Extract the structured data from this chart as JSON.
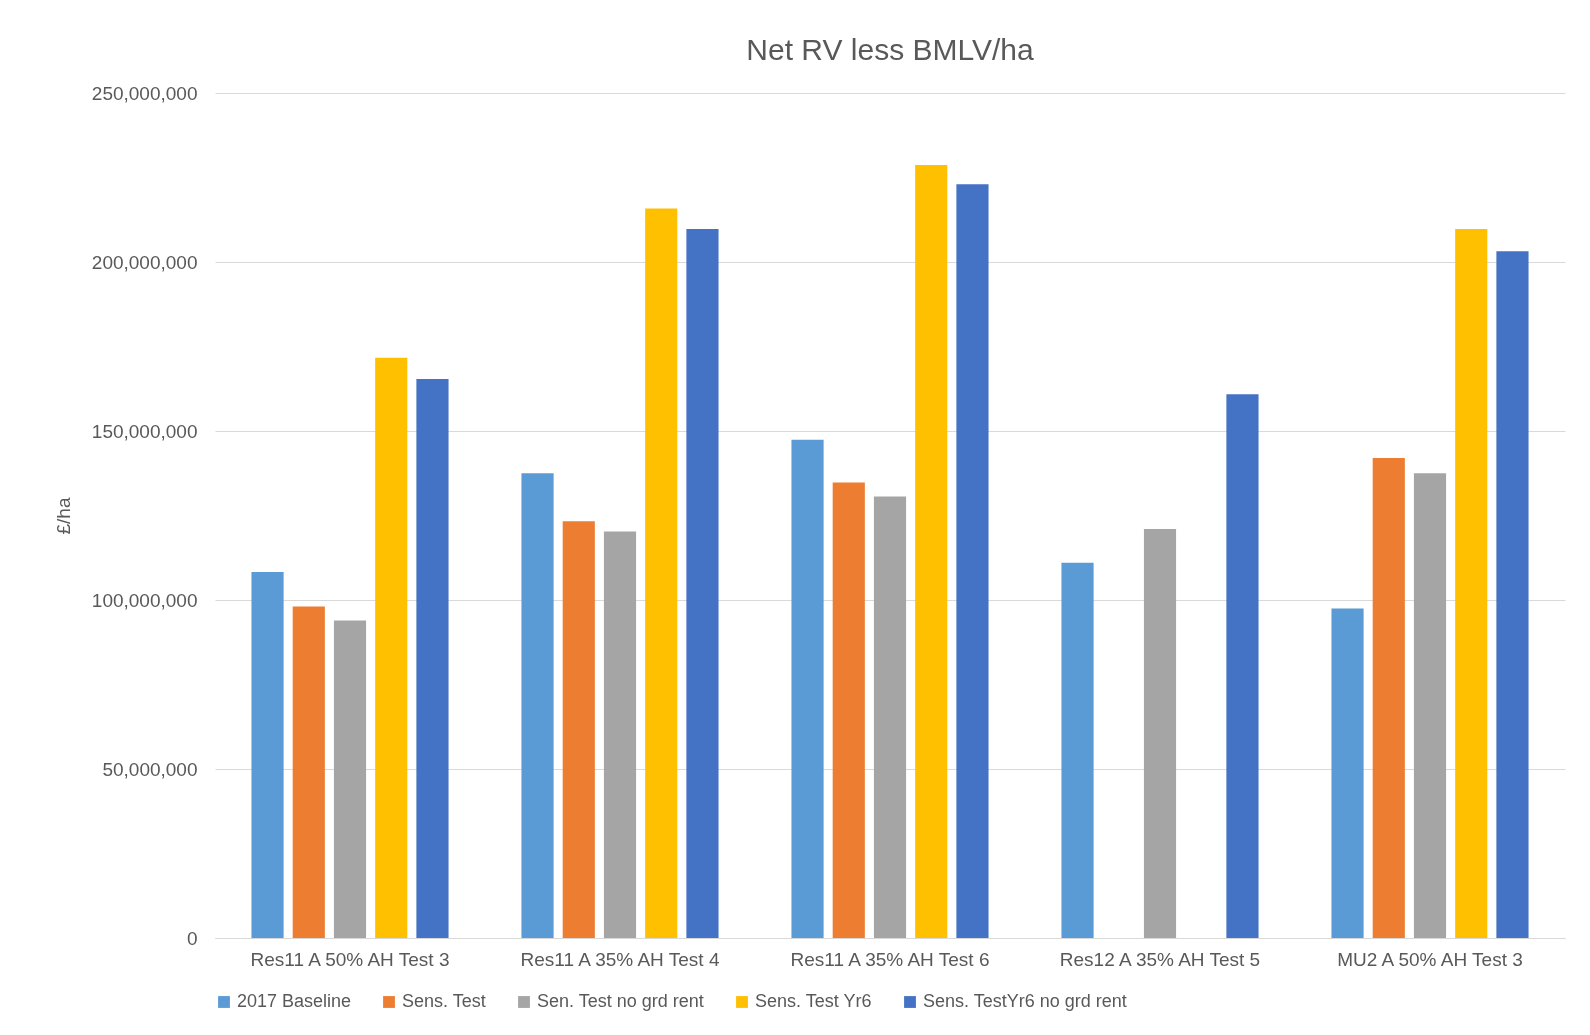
{
  "chart_data": {
    "type": "bar",
    "title": "Net RV less BMLV/ha",
    "ylabel": "£/ha",
    "categories": [
      "Res11 A 50% AH Test 3",
      "Res11 A 35% AH Test 4",
      "Res11 A 35% AH Test 6",
      "Res12 A 35% AH Test 5",
      "MU2 A 50% AH Test 3"
    ],
    "series": [
      {
        "name": "2017 Baseline",
        "color": "#5b9bd5",
        "values": [
          108300000,
          137500000,
          147400000,
          111000000,
          97500000
        ]
      },
      {
        "name": "Sens. Test",
        "color": "#ed7d31",
        "values": [
          98100000,
          123300000,
          134800000,
          null,
          142000000
        ]
      },
      {
        "name": "Sen. Test no grd rent",
        "color": "#a5a5a5",
        "values": [
          93900000,
          120300000,
          130600000,
          121000000,
          137500000
        ]
      },
      {
        "name": "Sens. Test Yr6",
        "color": "#ffc000",
        "values": [
          171700000,
          215800000,
          228700000,
          null,
          209800000
        ]
      },
      {
        "name": "Sens. TestYr6 no grd rent",
        "color": "#4472c4",
        "values": [
          165400000,
          209800000,
          223000000,
          160900000,
          203200000
        ]
      }
    ],
    "ylim": [
      0,
      250000000
    ],
    "yticks": [
      0,
      {
        "value": 50000000,
        "label": "50,000,000"
      },
      {
        "value": 100000000,
        "label": "100,000,000"
      },
      {
        "value": 150000000,
        "label": "150,000,000"
      },
      {
        "value": 200000000,
        "label": "200,000,000"
      },
      {
        "value": 250000000,
        "label": "250,000,000"
      }
    ],
    "grid": "y",
    "legend": "bottom"
  }
}
